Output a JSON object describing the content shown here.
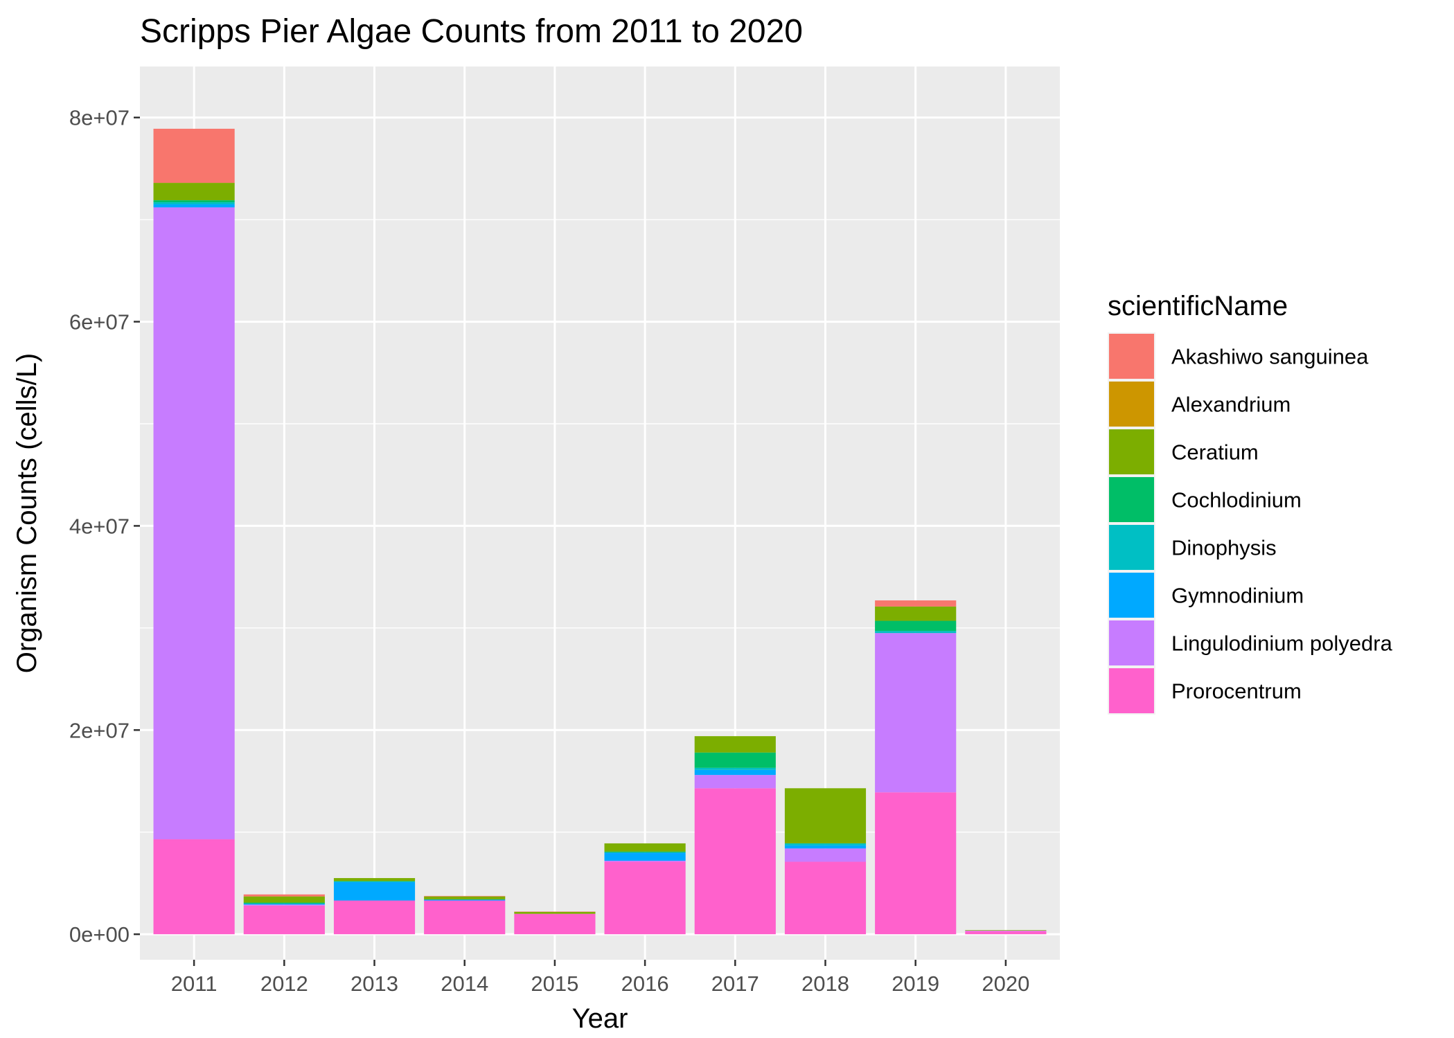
{
  "chart_data": {
    "type": "bar",
    "stacked": true,
    "title": "Scripps Pier Algae Counts from 2011 to 2020",
    "xlabel": "Year",
    "ylabel": "Organism Counts (cells/L)",
    "ylim": [
      -2500000,
      85000000
    ],
    "y_ticks": [
      0,
      20000000,
      40000000,
      60000000,
      80000000
    ],
    "y_tick_labels": [
      "0e+00",
      "2e+07",
      "4e+07",
      "6e+07",
      "8e+07"
    ],
    "grid": true,
    "legend_position": "right",
    "legend_title": "scientificName",
    "categories": [
      "2011",
      "2012",
      "2013",
      "2014",
      "2015",
      "2016",
      "2017",
      "2018",
      "2019",
      "2020"
    ],
    "series": [
      {
        "name": "Akashiwo sanguinea",
        "color": "#F8766D",
        "values": [
          5300000,
          200000,
          0,
          50000,
          20000,
          0,
          0,
          0,
          600000,
          0
        ]
      },
      {
        "name": "Alexandrium",
        "color": "#CD9600",
        "values": [
          0,
          0,
          0,
          0,
          0,
          0,
          0,
          0,
          0,
          0
        ]
      },
      {
        "name": "Ceratium",
        "color": "#7CAE00",
        "values": [
          1700000,
          600000,
          300000,
          300000,
          200000,
          800000,
          1600000,
          5400000,
          1400000,
          50000
        ]
      },
      {
        "name": "Cochlodinium",
        "color": "#00BE67",
        "values": [
          200000,
          100000,
          0,
          0,
          0,
          100000,
          1500000,
          0,
          1000000,
          0
        ]
      },
      {
        "name": "Dinophysis",
        "color": "#00BFC4",
        "values": [
          200000,
          0,
          100000,
          0,
          0,
          0,
          200000,
          200000,
          200000,
          0
        ]
      },
      {
        "name": "Gymnodinium",
        "color": "#00A9FF",
        "values": [
          300000,
          100000,
          1800000,
          100000,
          0,
          800000,
          500000,
          300000,
          0,
          0
        ]
      },
      {
        "name": "Lingulodinium polyedra",
        "color": "#C77CFF",
        "values": [
          61900000,
          100000,
          0,
          0,
          0,
          100000,
          1300000,
          1300000,
          15600000,
          50000
        ]
      },
      {
        "name": "Prorocentrum",
        "color": "#FF61CC",
        "values": [
          9300000,
          2800000,
          3300000,
          3300000,
          2000000,
          7100000,
          14300000,
          7100000,
          13900000,
          300000
        ]
      }
    ]
  }
}
